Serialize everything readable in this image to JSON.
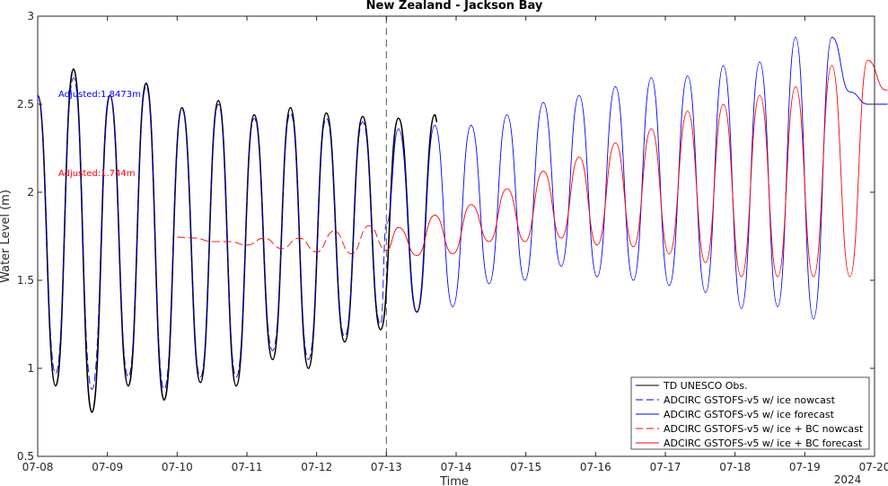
{
  "chart_data": {
    "type": "line",
    "title": "New Zealand - Jackson Bay",
    "xlabel": "Time",
    "ylabel": "Water Level (m)",
    "year_label": "2024",
    "xlim": [
      "07-08",
      "07-20"
    ],
    "ylim": [
      0.5,
      3
    ],
    "yticks": [
      0.5,
      1,
      1.5,
      2,
      2.5,
      3
    ],
    "ytick_labels": [
      "0.5",
      "1",
      "1.5",
      "2",
      "2.5",
      "3"
    ],
    "xtick_labels": [
      "07-08",
      "07-09",
      "07-10",
      "07-11",
      "07-12",
      "07-13",
      "07-14",
      "07-15",
      "07-16",
      "07-17",
      "07-18",
      "07-19",
      "07-20"
    ],
    "nowcast_forecast_split": "07-13",
    "grid": false,
    "legend_position": "bottom-right",
    "annotations": [
      {
        "text": "Adjusted:1.8473m",
        "color": "#0000ff"
      },
      {
        "text": "Adjusted:1.744m",
        "color": "#ff0000"
      }
    ],
    "series": [
      {
        "name": "TD UNESCO Obs.",
        "color": "#000000",
        "style": "solid",
        "x": [
          "07-08 00:00",
          "07-08 06:10",
          "07-08 12:20",
          "07-08 18:40",
          "07-09 00:50",
          "07-09 07:10",
          "07-09 13:20",
          "07-09 19:30",
          "07-10 01:40",
          "07-10 08:00",
          "07-10 14:10",
          "07-10 20:20",
          "07-11 02:30",
          "07-11 08:50",
          "07-11 15:00",
          "07-11 21:10",
          "07-12 03:20",
          "07-12 09:40",
          "07-12 15:50",
          "07-12 22:00",
          "07-13 04:10",
          "07-13 10:30",
          "07-13 16:40",
          "07-13 17:30"
        ],
        "y": [
          2.55,
          0.9,
          2.7,
          0.75,
          2.55,
          0.9,
          2.62,
          0.82,
          2.48,
          0.92,
          2.52,
          0.9,
          2.44,
          1.05,
          2.48,
          1.0,
          2.45,
          1.15,
          2.43,
          1.22,
          2.42,
          1.32,
          2.44,
          2.4
        ]
      },
      {
        "name": "ADCIRC GSTOFS-v5 w/ ice nowcast",
        "color": "#0000ff",
        "style": "dashed",
        "x": [
          "07-08 00:00",
          "07-08 06:10",
          "07-08 12:20",
          "07-08 18:40",
          "07-09 00:50",
          "07-09 07:10",
          "07-09 13:20",
          "07-09 19:30",
          "07-10 01:40",
          "07-10 08:00",
          "07-10 14:10",
          "07-10 20:20",
          "07-11 02:30",
          "07-11 08:50",
          "07-11 15:00",
          "07-11 21:10",
          "07-12 03:20",
          "07-12 09:40",
          "07-12 15:50",
          "07-12 22:00",
          "07-13 00:00"
        ],
        "y": [
          2.55,
          0.97,
          2.65,
          0.88,
          2.55,
          0.95,
          2.6,
          0.88,
          2.47,
          0.95,
          2.5,
          0.95,
          2.42,
          1.1,
          2.45,
          1.05,
          2.42,
          1.18,
          2.4,
          1.25,
          1.82
        ]
      },
      {
        "name": "ADCIRC GSTOFS-v5 w/ ice forecast",
        "color": "#0000ff",
        "style": "solid",
        "x": [
          "07-13 00:00",
          "07-13 04:10",
          "07-13 10:30",
          "07-13 16:40",
          "07-13 22:50",
          "07-14 05:10",
          "07-14 11:20",
          "07-14 17:30",
          "07-14 23:40",
          "07-15 06:00",
          "07-15 12:10",
          "07-15 18:20",
          "07-16 00:30",
          "07-16 06:50",
          "07-16 13:00",
          "07-16 19:10",
          "07-17 01:20",
          "07-17 07:40",
          "07-17 13:50",
          "07-17 20:00",
          "07-18 02:10",
          "07-18 08:30",
          "07-18 14:40",
          "07-18 20:50",
          "07-19 03:00",
          "07-19 09:20",
          "07-19 15:30",
          "07-19 21:40",
          "07-20 03:50",
          "07-20 04:30"
        ],
        "y": [
          1.82,
          2.36,
          1.32,
          2.38,
          1.35,
          2.38,
          1.48,
          2.44,
          1.5,
          2.51,
          1.58,
          2.55,
          1.52,
          2.6,
          1.5,
          2.65,
          1.47,
          2.66,
          1.43,
          2.72,
          1.34,
          2.74,
          1.35,
          2.88,
          1.28,
          2.88,
          2.57,
          2.5,
          2.5,
          2.5
        ]
      },
      {
        "name": "ADCIRC GSTOFS-v5 w/ ice + BC nowcast",
        "color": "#ff0000",
        "style": "dashed",
        "x": [
          "07-10 00:00",
          "07-10 06:00",
          "07-10 12:00",
          "07-10 18:00",
          "07-11 00:00",
          "07-11 06:00",
          "07-11 12:00",
          "07-11 18:00",
          "07-12 00:00",
          "07-12 06:00",
          "07-12 12:00",
          "07-12 18:00",
          "07-13 00:00"
        ],
        "y": [
          1.745,
          1.74,
          1.72,
          1.72,
          1.7,
          1.74,
          1.68,
          1.74,
          1.66,
          1.78,
          1.65,
          1.81,
          1.67
        ]
      },
      {
        "name": "ADCIRC GSTOFS-v5 w/ ice + BC forecast",
        "color": "#ff0000",
        "style": "solid",
        "x": [
          "07-13 00:00",
          "07-13 04:10",
          "07-13 10:30",
          "07-13 16:40",
          "07-13 22:50",
          "07-14 05:10",
          "07-14 11:20",
          "07-14 17:30",
          "07-14 23:40",
          "07-15 06:00",
          "07-15 12:10",
          "07-15 18:20",
          "07-16 00:30",
          "07-16 06:50",
          "07-16 13:00",
          "07-16 19:10",
          "07-17 01:20",
          "07-17 07:40",
          "07-17 13:50",
          "07-17 20:00",
          "07-18 02:10",
          "07-18 08:30",
          "07-18 14:40",
          "07-18 20:50",
          "07-19 03:00",
          "07-19 09:20",
          "07-19 15:30",
          "07-19 21:40",
          "07-20 03:50",
          "07-20 04:30"
        ],
        "y": [
          1.67,
          1.8,
          1.64,
          1.87,
          1.65,
          1.93,
          1.72,
          2.02,
          1.72,
          2.12,
          1.74,
          2.2,
          1.7,
          2.28,
          1.69,
          2.36,
          1.65,
          2.46,
          1.6,
          2.5,
          1.52,
          2.55,
          1.52,
          2.6,
          1.52,
          2.72,
          1.52,
          2.75,
          2.58,
          2.58
        ]
      }
    ]
  }
}
